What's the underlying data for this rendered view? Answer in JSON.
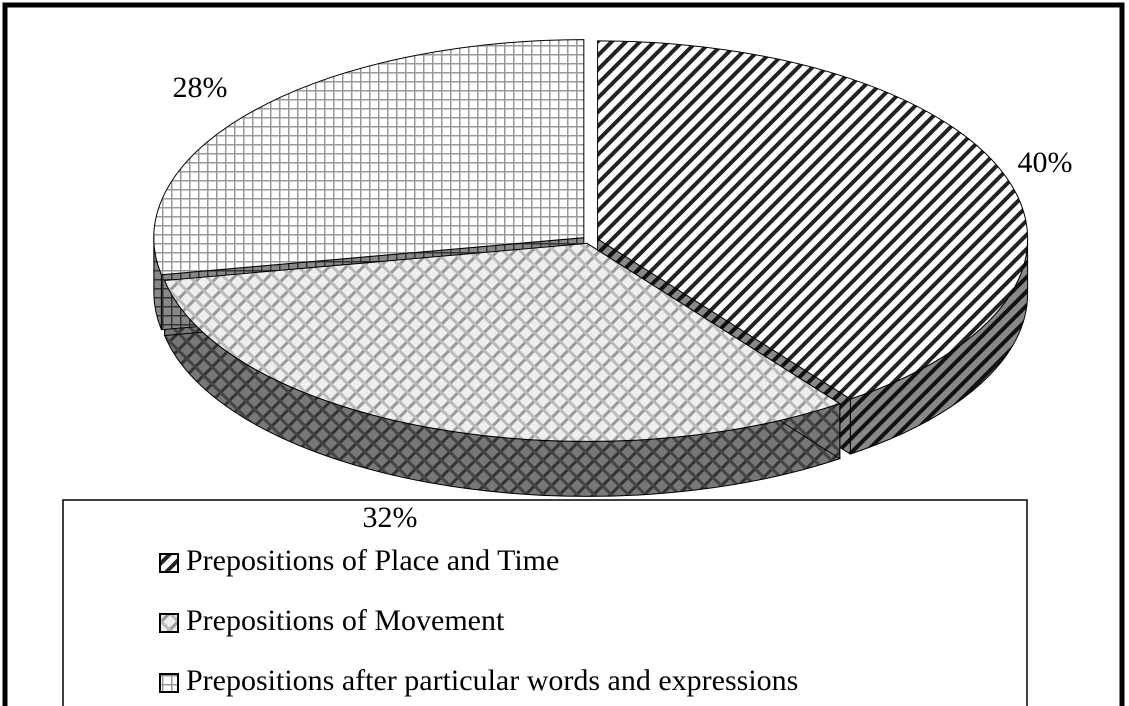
{
  "chart_data": {
    "type": "pie",
    "categories": [
      "Prepositions of Place and Time",
      "Prepositions of Movement",
      "Prepositions after particular words and expressions"
    ],
    "values": [
      40,
      32,
      28
    ],
    "value_labels": [
      "40%",
      "32%",
      "28%"
    ],
    "legend": "bottom"
  }
}
